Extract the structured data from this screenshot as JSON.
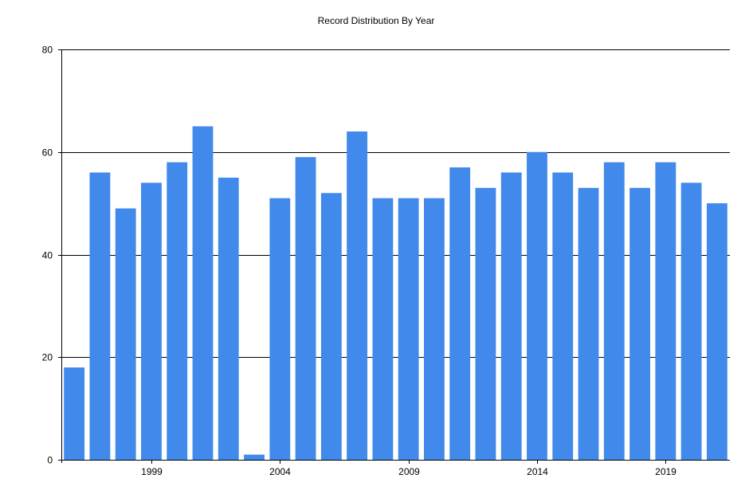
{
  "chart_data": {
    "type": "bar",
    "title": "Record Distribution By Year",
    "xlabel": "",
    "ylabel": "",
    "categories": [
      "1996",
      "1997",
      "1998",
      "1999",
      "2000",
      "2001",
      "2002",
      "2003",
      "2004",
      "2005",
      "2006",
      "2007",
      "2008",
      "2009",
      "2010",
      "2011",
      "2012",
      "2013",
      "2014",
      "2015",
      "2016",
      "2017",
      "2018",
      "2019",
      "2020",
      "2021"
    ],
    "values": [
      18,
      56,
      49,
      54,
      58,
      65,
      55,
      1,
      51,
      59,
      52,
      64,
      51,
      51,
      51,
      57,
      53,
      56,
      60,
      56,
      53,
      58,
      53,
      58,
      54,
      50
    ],
    "xlim": [
      1995.5,
      2021.5
    ],
    "ylim": [
      0,
      80
    ],
    "y_ticks": [
      "0",
      "20",
      "40",
      "60",
      "80"
    ],
    "x_tick_labels": [
      "1999",
      "2004",
      "2009",
      "2014",
      "2019"
    ],
    "grid": "horizontal",
    "legend": "none",
    "bar_color": "#4189ea"
  }
}
